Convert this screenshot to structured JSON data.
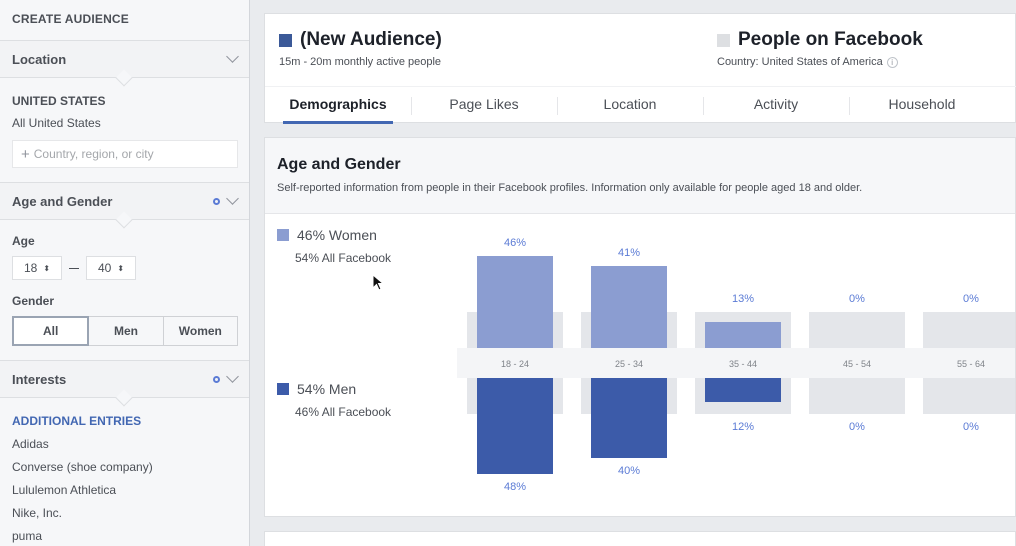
{
  "sidebar": {
    "title": "CREATE AUDIENCE",
    "location": {
      "header": "Location",
      "country": "UNITED STATES",
      "scope": "All United States",
      "input_placeholder": "Country, region, or city"
    },
    "age_gender": {
      "header": "Age and Gender",
      "age_label": "Age",
      "age_min": "18",
      "age_max": "40",
      "gender_label": "Gender",
      "gender_options": [
        "All",
        "Men",
        "Women"
      ],
      "gender_selected": "All"
    },
    "interests": {
      "header": "Interests",
      "additional_label": "ADDITIONAL ENTRIES",
      "items": [
        "Adidas",
        "Converse (shoe company)",
        "Lululemon Athletica",
        "Nike, Inc.",
        "puma"
      ]
    }
  },
  "audience": {
    "name": "(New Audience)",
    "subtitle": "15m - 20m monthly active people",
    "color": "#3b5998",
    "compare_name": "People on Facebook",
    "compare_subtitle": "Country: United States of America",
    "compare_color": "#dddfe2"
  },
  "tabs": [
    "Demographics",
    "Page Likes",
    "Location",
    "Activity",
    "Household"
  ],
  "active_tab": "Demographics",
  "age_gender_section": {
    "title": "Age and Gender",
    "description": "Self-reported information from people in their Facebook profiles. Information only available for people aged 18 and older.",
    "women": {
      "label": "46% Women",
      "compare": "54% All Facebook",
      "color": "#8b9dd1"
    },
    "men": {
      "label": "54% Men",
      "compare": "46% All Facebook",
      "color": "#3c5ba9"
    }
  },
  "chart_data": {
    "type": "bar",
    "categories": [
      "18 - 24",
      "25 - 34",
      "35 - 44",
      "45 - 54",
      "55 - 64"
    ],
    "series": [
      {
        "name": "Women",
        "values": [
          46,
          41,
          13,
          0,
          0
        ],
        "labels": [
          "46%",
          "41%",
          "13%",
          "0%",
          "0%"
        ]
      },
      {
        "name": "Men",
        "values": [
          48,
          40,
          12,
          0,
          0
        ],
        "labels": [
          "48%",
          "40%",
          "12%",
          "0%",
          "0%"
        ]
      }
    ],
    "ylim": [
      0,
      50
    ],
    "colors": {
      "women": "#8b9dd1",
      "men": "#3c5ba9",
      "baseline": "#e4e6ea"
    }
  }
}
